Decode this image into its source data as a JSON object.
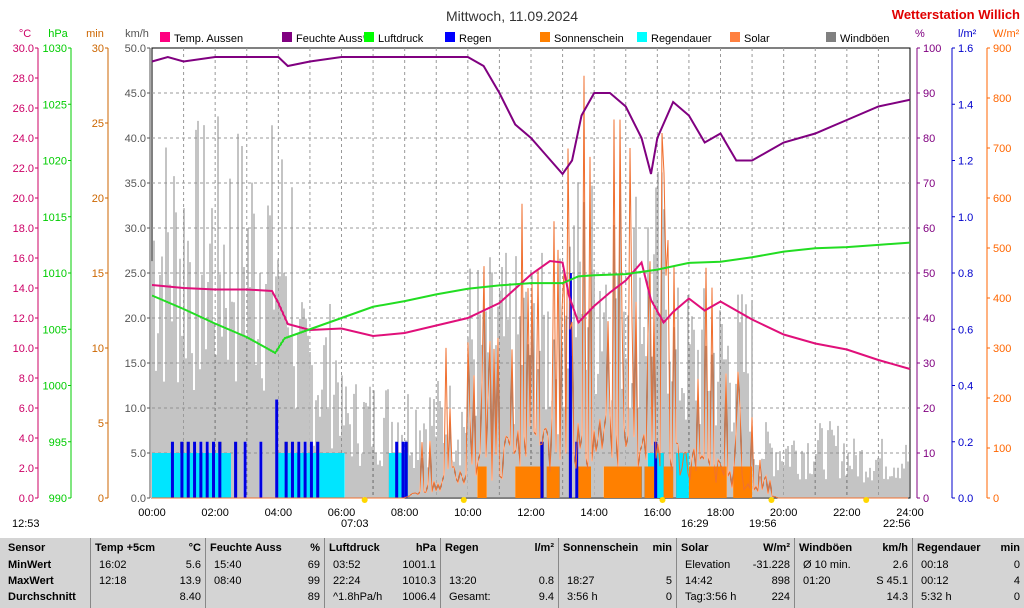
{
  "chart_data": {
    "type": "line",
    "title": "Mittwoch, 11.09.2024",
    "station": "Wetterstation Willich",
    "x_ticks": [
      "00:00",
      "02:00",
      "04:00",
      "06:00",
      "08:00",
      "10:00",
      "12:00",
      "14:00",
      "16:00",
      "18:00",
      "20:00",
      "22:00",
      "24:00"
    ],
    "x_range_hours": [
      0,
      24
    ],
    "left_axes": [
      {
        "unit": "°C",
        "color": "#cc0066",
        "range": [
          0,
          30
        ],
        "ticks": [
          "0.0",
          "2.0",
          "4.0",
          "6.0",
          "8.0",
          "10.0",
          "12.0",
          "14.0",
          "16.0",
          "18.0",
          "20.0",
          "22.0",
          "24.0",
          "26.0",
          "28.0",
          "30.0"
        ]
      },
      {
        "unit": "hPa",
        "color": "#00cc00",
        "range": [
          990,
          1030
        ],
        "ticks": [
          "990",
          "995",
          "1000",
          "1005",
          "1010",
          "1015",
          "1020",
          "1025",
          "1030"
        ]
      },
      {
        "unit": "min",
        "color": "#cc6600",
        "range": [
          0,
          30
        ],
        "ticks": [
          "0",
          "5",
          "10",
          "15",
          "20",
          "25",
          "30"
        ]
      },
      {
        "unit": "km/h",
        "color": "#555555",
        "range": [
          0,
          50
        ],
        "ticks": [
          "0.0",
          "5.0",
          "10.0",
          "15.0",
          "20.0",
          "25.0",
          "30.0",
          "35.0",
          "40.0",
          "45.0",
          "50.0"
        ]
      }
    ],
    "right_axes": [
      {
        "unit": "%",
        "color": "#800080",
        "range": [
          0,
          100
        ],
        "ticks": [
          "0",
          "10",
          "20",
          "30",
          "40",
          "50",
          "60",
          "70",
          "80",
          "90",
          "100"
        ]
      },
      {
        "unit": "l/m²",
        "color": "#0000cc",
        "range": [
          0,
          1.6
        ],
        "ticks": [
          "0.0",
          "0.2",
          "0.4",
          "0.6",
          "0.8",
          "1.0",
          "1.2",
          "1.4",
          "1.6"
        ]
      },
      {
        "unit": "W/m²",
        "color": "#ff6600",
        "range": [
          0,
          900
        ],
        "ticks": [
          "0",
          "100",
          "200",
          "300",
          "400",
          "500",
          "600",
          "700",
          "800",
          "900"
        ]
      }
    ],
    "legend": [
      {
        "name": "Temp. Aussen",
        "color": "#ff0080"
      },
      {
        "name": "Feuchte Auss*",
        "color": "#800080"
      },
      {
        "name": "Luftdruck",
        "color": "#00ff00"
      },
      {
        "name": "Regen",
        "color": "#0000ff"
      },
      {
        "name": "Sonnenschein",
        "color": "#ff8000"
      },
      {
        "name": "Regendauer",
        "color": "#00ffff"
      },
      {
        "name": "Solar",
        "color": "#ff8040"
      },
      {
        "name": "Windböen",
        "color": "#808080"
      }
    ],
    "series": [
      {
        "name": "Temp. Aussen",
        "axis": "°C",
        "color": "#e0107a",
        "x": [
          0,
          1,
          2,
          3,
          3.8,
          4.0,
          4.3,
          5,
          6,
          7,
          8,
          9,
          10,
          11,
          12,
          12.6,
          13.0,
          13.2,
          13.5,
          14,
          14.5,
          15,
          15.5,
          15.8,
          16.2,
          16.5,
          17,
          17.5,
          18,
          18.5,
          19,
          20,
          21,
          22,
          23,
          24
        ],
        "y": [
          14.2,
          14.0,
          13.9,
          13.9,
          13.8,
          13.0,
          11.6,
          11.2,
          11.3,
          10.8,
          11.0,
          11.5,
          12.0,
          13.0,
          14.9,
          15.8,
          15.7,
          13.5,
          11.7,
          12.8,
          13.7,
          14.5,
          15.7,
          13.2,
          11.7,
          12.4,
          13.3,
          12.5,
          13.1,
          12.5,
          11.9,
          10.9,
          10.3,
          9.9,
          9.2,
          8.6
        ]
      },
      {
        "name": "Feuchte Auss*",
        "axis": "%",
        "color": "#800080",
        "x": [
          0,
          0.5,
          1,
          2,
          3,
          4,
          4.3,
          5,
          6,
          7,
          8,
          9,
          10,
          10.5,
          11,
          11.5,
          12,
          12.5,
          13,
          13.3,
          13.6,
          14,
          14.5,
          15,
          15.5,
          15.8,
          16,
          16.5,
          17,
          17.5,
          18,
          18.5,
          19,
          19.5,
          20,
          21,
          22,
          23,
          24
        ],
        "y": [
          97,
          98,
          97,
          98,
          98,
          98,
          96,
          97,
          98,
          98,
          98,
          98,
          98,
          96,
          90,
          83,
          80,
          76,
          72,
          75,
          85,
          90,
          90,
          87,
          80,
          72,
          80,
          88,
          85,
          79,
          81,
          75,
          75,
          77,
          79,
          81,
          84,
          87,
          88.5
        ]
      },
      {
        "name": "Luftdruck",
        "axis": "hPa",
        "color": "#22dd22",
        "x": [
          0,
          1,
          2,
          3,
          3.9,
          4.2,
          5,
          6,
          7,
          8,
          9,
          10,
          11,
          12,
          13,
          13.5,
          14,
          15,
          16,
          17,
          18,
          19,
          20,
          21,
          22,
          23,
          24
        ],
        "y": [
          1008.0,
          1006.8,
          1005.5,
          1004.3,
          1002.9,
          1004.2,
          1005.0,
          1006.0,
          1007.0,
          1007.5,
          1008.1,
          1008.6,
          1008.9,
          1009.1,
          1009.1,
          1009.7,
          1009.8,
          1009.9,
          1010.3,
          1010.9,
          1011.0,
          1011.4,
          1011.9,
          1012.2,
          1012.3,
          1012.5,
          1012.7
        ]
      }
    ],
    "sunrise": "07:03",
    "sunset": "19:56",
    "moon_rise": "16:29",
    "moon_set": "22:56",
    "current_time_label": "12:53"
  },
  "table": {
    "labels_col": {
      "header": "Sensor",
      "rows": [
        "MinWert",
        "MaxWert",
        "Durchschnitt"
      ]
    },
    "temp": {
      "header": "Temp +5cm",
      "unit": "°C",
      "rows": [
        [
          "16:02",
          "5.6"
        ],
        [
          "12:18",
          "13.9"
        ],
        [
          "",
          "8.40"
        ]
      ]
    },
    "feuchte": {
      "header": "Feuchte Auss",
      "unit": "%",
      "rows": [
        [
          "15:40",
          "69"
        ],
        [
          "08:40",
          "99"
        ],
        [
          "",
          "89"
        ]
      ]
    },
    "luftdruck": {
      "header": "Luftdruck",
      "unit": "hPa",
      "rows": [
        [
          "03:52",
          "1001.1"
        ],
        [
          "22:24",
          "1010.3"
        ],
        [
          "^1.8hPa/h",
          "1006.4"
        ]
      ]
    },
    "regen": {
      "header": "Regen",
      "unit": "l/m²",
      "rows": [
        [
          "",
          ""
        ],
        [
          "13:20",
          "0.8"
        ],
        [
          "Gesamt:",
          "9.4"
        ]
      ]
    },
    "sonnenschein": {
      "header": "Sonnenschein",
      "unit": "min",
      "rows": [
        [
          "",
          ""
        ],
        [
          "18:27",
          "5"
        ],
        [
          "3:56 h",
          "0"
        ]
      ]
    },
    "solar": {
      "header": "Solar",
      "unit": "W/m²",
      "rows": [
        [
          "Elevation",
          "-31.228"
        ],
        [
          "14:42",
          "898"
        ],
        [
          "Tag:3:56 h",
          "224"
        ]
      ]
    },
    "windboeen": {
      "header": "Windböen",
      "unit": "km/h",
      "rows": [
        [
          "Ø 10 min.",
          "2.6"
        ],
        [
          "01:20",
          "S 45.1"
        ],
        [
          "",
          "14.3"
        ]
      ]
    },
    "regendauer": {
      "header": "Regendauer",
      "unit": "min",
      "rows": [
        [
          "00:18",
          "0"
        ],
        [
          "00:12",
          "4"
        ],
        [
          "5:32 h",
          "0"
        ]
      ]
    }
  }
}
